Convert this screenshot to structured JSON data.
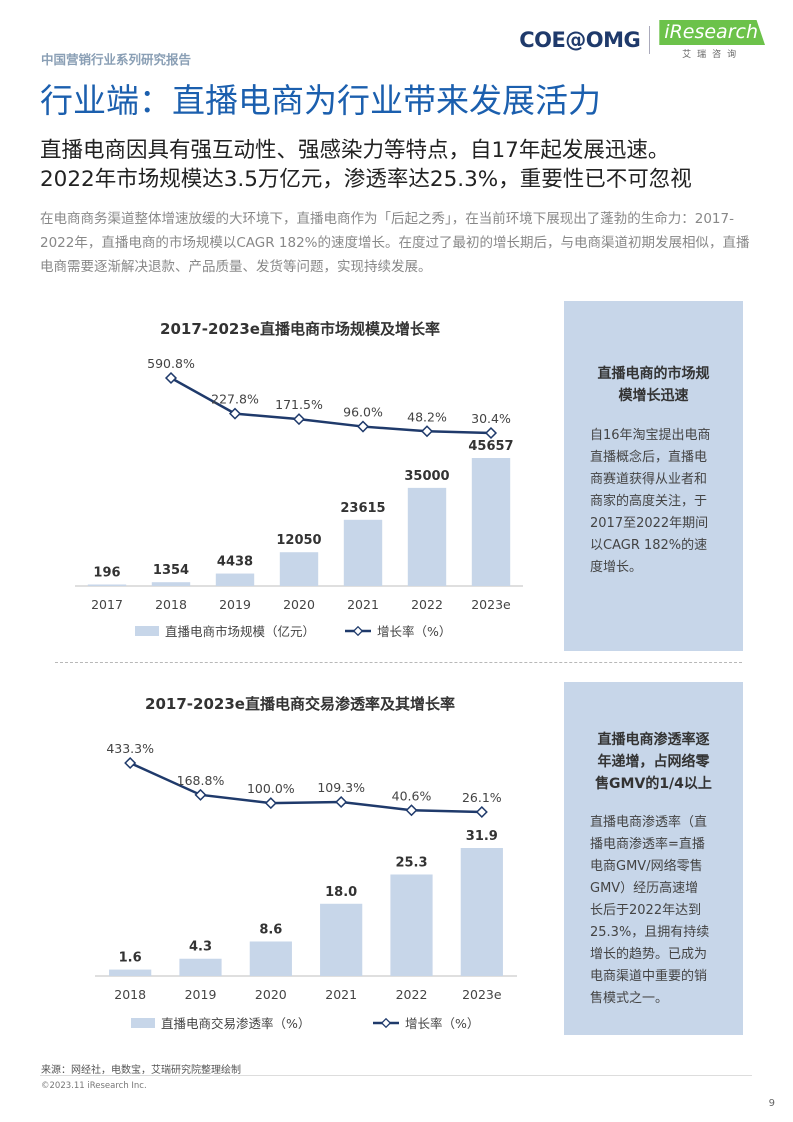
{
  "header": {
    "series_title": "中国营销行业系列研究报告",
    "logo_left": "COE@OMG",
    "logo_right": "iResearch",
    "logo_right_sub": "艾瑞咨询",
    "brand_green": "#6cc24a",
    "brand_navy": "#1f3a6b"
  },
  "page": {
    "title": "行业端：直播电商为行业带来发展活力",
    "headline_1": "直播电商因具有强互动性、强感染力等特点，自17年起发展迅速。",
    "headline_2": "2022年市场规模达3.5万亿元，渗透率达25.3%，重要性已不可忽视",
    "intro": "在电商商务渠道整体增速放缓的大环境下，直播电商作为「后起之秀」，在当前环境下展现出了蓬勃的生命力：2017-2022年，直播电商的市场规模以CAGR 182%的速度增长。在度过了最初的增长期后，与电商渠道初期发展相似，直播电商需要逐渐解决退款、产品质量、发货等问题，实现持续发展。",
    "title_color": "#1b5fae",
    "bar_color": "#c7d6e9",
    "line_color": "#1f3a6b"
  },
  "side1": {
    "heading_1": "直播电商的市场规",
    "heading_2": "模增长迅速",
    "body": [
      "自16年淘宝提出电商",
      "直播概念后，直播电",
      "商赛道获得从业者和",
      "商家的高度关注，于",
      "2017至2022年期间",
      "以CAGR 182%的速",
      "度增长。"
    ]
  },
  "side2": {
    "heading_1": "直播电商渗透率逐",
    "heading_2": "年递增，占网络零",
    "heading_3": "售GMV的1/4以上",
    "body": [
      "直播电商渗透率（直",
      "播电商渗透率=直播",
      "电商GMV/网络零售",
      "GMV）经历高速增",
      "长后于2022年达到",
      "25.3%，且拥有持续",
      "增长的趋势。已成为",
      "电商渠道中重要的销",
      "售模式之一。"
    ]
  },
  "footer": {
    "source": "来源：网经社，电数宝，艾瑞研究院整理绘制",
    "copyright": "©2023.11 iResearch Inc.",
    "page_number": "9"
  },
  "chart_data": [
    {
      "type": "bar+line",
      "title": "2017-2023e直播电商市场规模及增长率",
      "categories": [
        "2017",
        "2018",
        "2019",
        "2020",
        "2021",
        "2022",
        "2023e"
      ],
      "bar_series": {
        "name": "直播电商市场规模（亿元）",
        "values": [
          196,
          1354,
          4438,
          12050,
          23615,
          35000,
          45657
        ],
        "labels": [
          "196",
          "1354",
          "4438",
          "12050",
          "23615",
          "35000",
          "45657"
        ]
      },
      "line_series": {
        "name": "增长率（%）",
        "values": [
          null,
          590.8,
          227.8,
          171.5,
          96.0,
          48.2,
          30.4
        ],
        "labels": [
          "",
          "590.8%",
          "227.8%",
          "171.5%",
          "96.0%",
          "48.2%",
          "30.4%"
        ]
      },
      "legend": "bottom",
      "grid": false
    },
    {
      "type": "bar+line",
      "title": "2017-2023e直播电商交易渗透率及其增长率",
      "categories": [
        "2018",
        "2019",
        "2020",
        "2021",
        "2022",
        "2023e"
      ],
      "bar_series": {
        "name": "直播电商交易渗透率（%）",
        "values": [
          1.6,
          4.3,
          8.6,
          18.0,
          25.3,
          31.9
        ],
        "labels": [
          "1.6",
          "4.3",
          "8.6",
          "18.0",
          "25.3",
          "31.9"
        ]
      },
      "line_series": {
        "name": "增长率（%）",
        "values": [
          433.3,
          168.8,
          100.0,
          109.3,
          40.6,
          26.1
        ],
        "labels": [
          "433.3%",
          "168.8%",
          "100.0%",
          "109.3%",
          "40.6%",
          "26.1%"
        ]
      },
      "legend": "bottom",
      "grid": false
    }
  ]
}
